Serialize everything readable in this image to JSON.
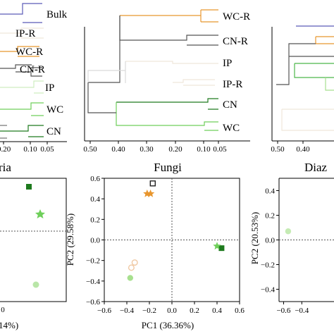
{
  "chart_data": [
    {
      "type": "dendrogram",
      "panel": "bacteria-dendrogram",
      "leaves": [
        "Bulk",
        "IP-R",
        "WC-R",
        "CN-R",
        "IP",
        "WC",
        "CN"
      ],
      "xticks": [
        "0.20",
        "0.10",
        "0.05"
      ],
      "xlim": [
        0.2,
        0.0
      ]
    },
    {
      "type": "dendrogram",
      "panel": "fungi-dendrogram",
      "leaves": [
        "WC-R",
        "CN-R",
        "IP",
        "IP-R",
        "CN",
        "WC"
      ],
      "xticks": [
        "0.50",
        "0.40",
        "0.30",
        "0.20",
        "0.10",
        "0.05"
      ],
      "xlim": [
        0.5,
        0.0
      ]
    },
    {
      "type": "dendrogram",
      "panel": "diazotroph-dendrogram",
      "leaves": [],
      "xticks": [
        "0.50",
        "0.40"
      ],
      "xlim": [
        0.5,
        0.0
      ]
    },
    {
      "type": "scatter",
      "panel": "bacteria-pca",
      "title": "ria",
      "xlabel": "14%)",
      "xticks": [
        "0"
      ],
      "points": [
        {
          "group": "CN",
          "shape": "square",
          "x": 0.25,
          "y": 0.2,
          "color": "#1e7a1e"
        },
        {
          "group": "WC",
          "shape": "star",
          "x": 0.33,
          "y": 0.1,
          "color": "#6fcf5a"
        },
        {
          "group": "IP",
          "shape": "circle",
          "x": 0.3,
          "y": -0.12,
          "color": "#b9e6a8"
        }
      ]
    },
    {
      "type": "scatter",
      "panel": "fungi-pca",
      "title": "Fungi",
      "xlabel": "PC1 (36.36%)",
      "ylabel": "PC2 (29.58%)",
      "xlim": [
        -0.6,
        0.6
      ],
      "ylim": [
        -0.6,
        0.6
      ],
      "xticks": [
        "−0.6",
        "−0.4",
        "−0.2",
        "0.0",
        "0.2",
        "0.4",
        "0.6"
      ],
      "yticks": [
        "0.6",
        "0.4",
        "0.2",
        "0.0",
        "−0.2",
        "−0.4",
        "−0.6"
      ],
      "points": [
        {
          "group": "CN-R",
          "shape": "open-square",
          "x": -0.17,
          "y": 0.55,
          "color": "#222222"
        },
        {
          "group": "WC-R",
          "shape": "star",
          "x": -0.19,
          "y": 0.45,
          "color": "#e8962e"
        },
        {
          "group": "WC-R",
          "shape": "star",
          "x": -0.22,
          "y": 0.45,
          "color": "#e8962e"
        },
        {
          "group": "CN",
          "shape": "square",
          "x": 0.44,
          "y": -0.08,
          "color": "#1e7a1e"
        },
        {
          "group": "WC",
          "shape": "star",
          "x": 0.4,
          "y": -0.06,
          "color": "#6fcf5a"
        },
        {
          "group": "IP-R",
          "shape": "open-circle",
          "x": -0.33,
          "y": -0.22,
          "color": "#f0c9a4"
        },
        {
          "group": "IP-R",
          "shape": "open-circle",
          "x": -0.36,
          "y": -0.27,
          "color": "#f0c9a4"
        },
        {
          "group": "IP",
          "shape": "circle",
          "x": -0.37,
          "y": -0.37,
          "color": "#a8e08f"
        }
      ]
    },
    {
      "type": "scatter",
      "panel": "diazotroph-pca",
      "title": "Diaz",
      "ylabel": "PC2 (20.53%)",
      "ylim": [
        -0.5,
        0.5
      ],
      "yticks": [
        "0.4",
        "0.2",
        "0.0",
        "−0.2",
        "−0.4"
      ],
      "xticks": [
        "−0.6",
        "−0.4"
      ],
      "points": [
        {
          "group": "IP",
          "shape": "circle",
          "x": -0.55,
          "y": 0.07,
          "color": "#c5ebb4"
        }
      ]
    }
  ]
}
